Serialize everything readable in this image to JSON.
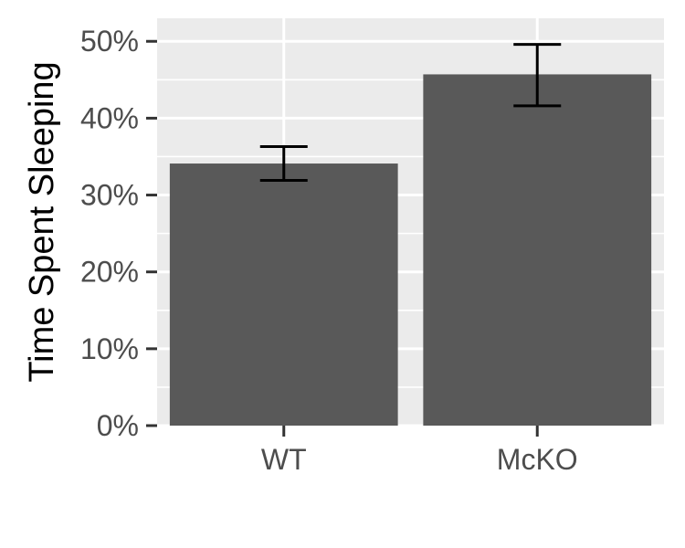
{
  "chart_data": {
    "type": "bar",
    "title": "",
    "xlabel": "",
    "ylabel": "Time Spent Sleeping",
    "categories": [
      "WT",
      "McKO"
    ],
    "values": [
      34.1,
      45.7
    ],
    "error": [
      [
        31.9,
        36.3
      ],
      [
        41.6,
        49.6
      ]
    ],
    "ylim": [
      0,
      53.0
    ],
    "yticks": [
      0,
      10,
      20,
      30,
      40,
      50
    ],
    "ytick_labels": [
      "0%",
      "10%",
      "20%",
      "30%",
      "40%",
      "50%"
    ],
    "grid": true,
    "colors": {
      "bar": "#595959",
      "panel": "#ebebeb",
      "grid": "#ffffff",
      "errorbar": "#000000",
      "axis_tick": "#333333",
      "tick_text": "#4d4d4d",
      "axis_title": "#000000"
    }
  }
}
